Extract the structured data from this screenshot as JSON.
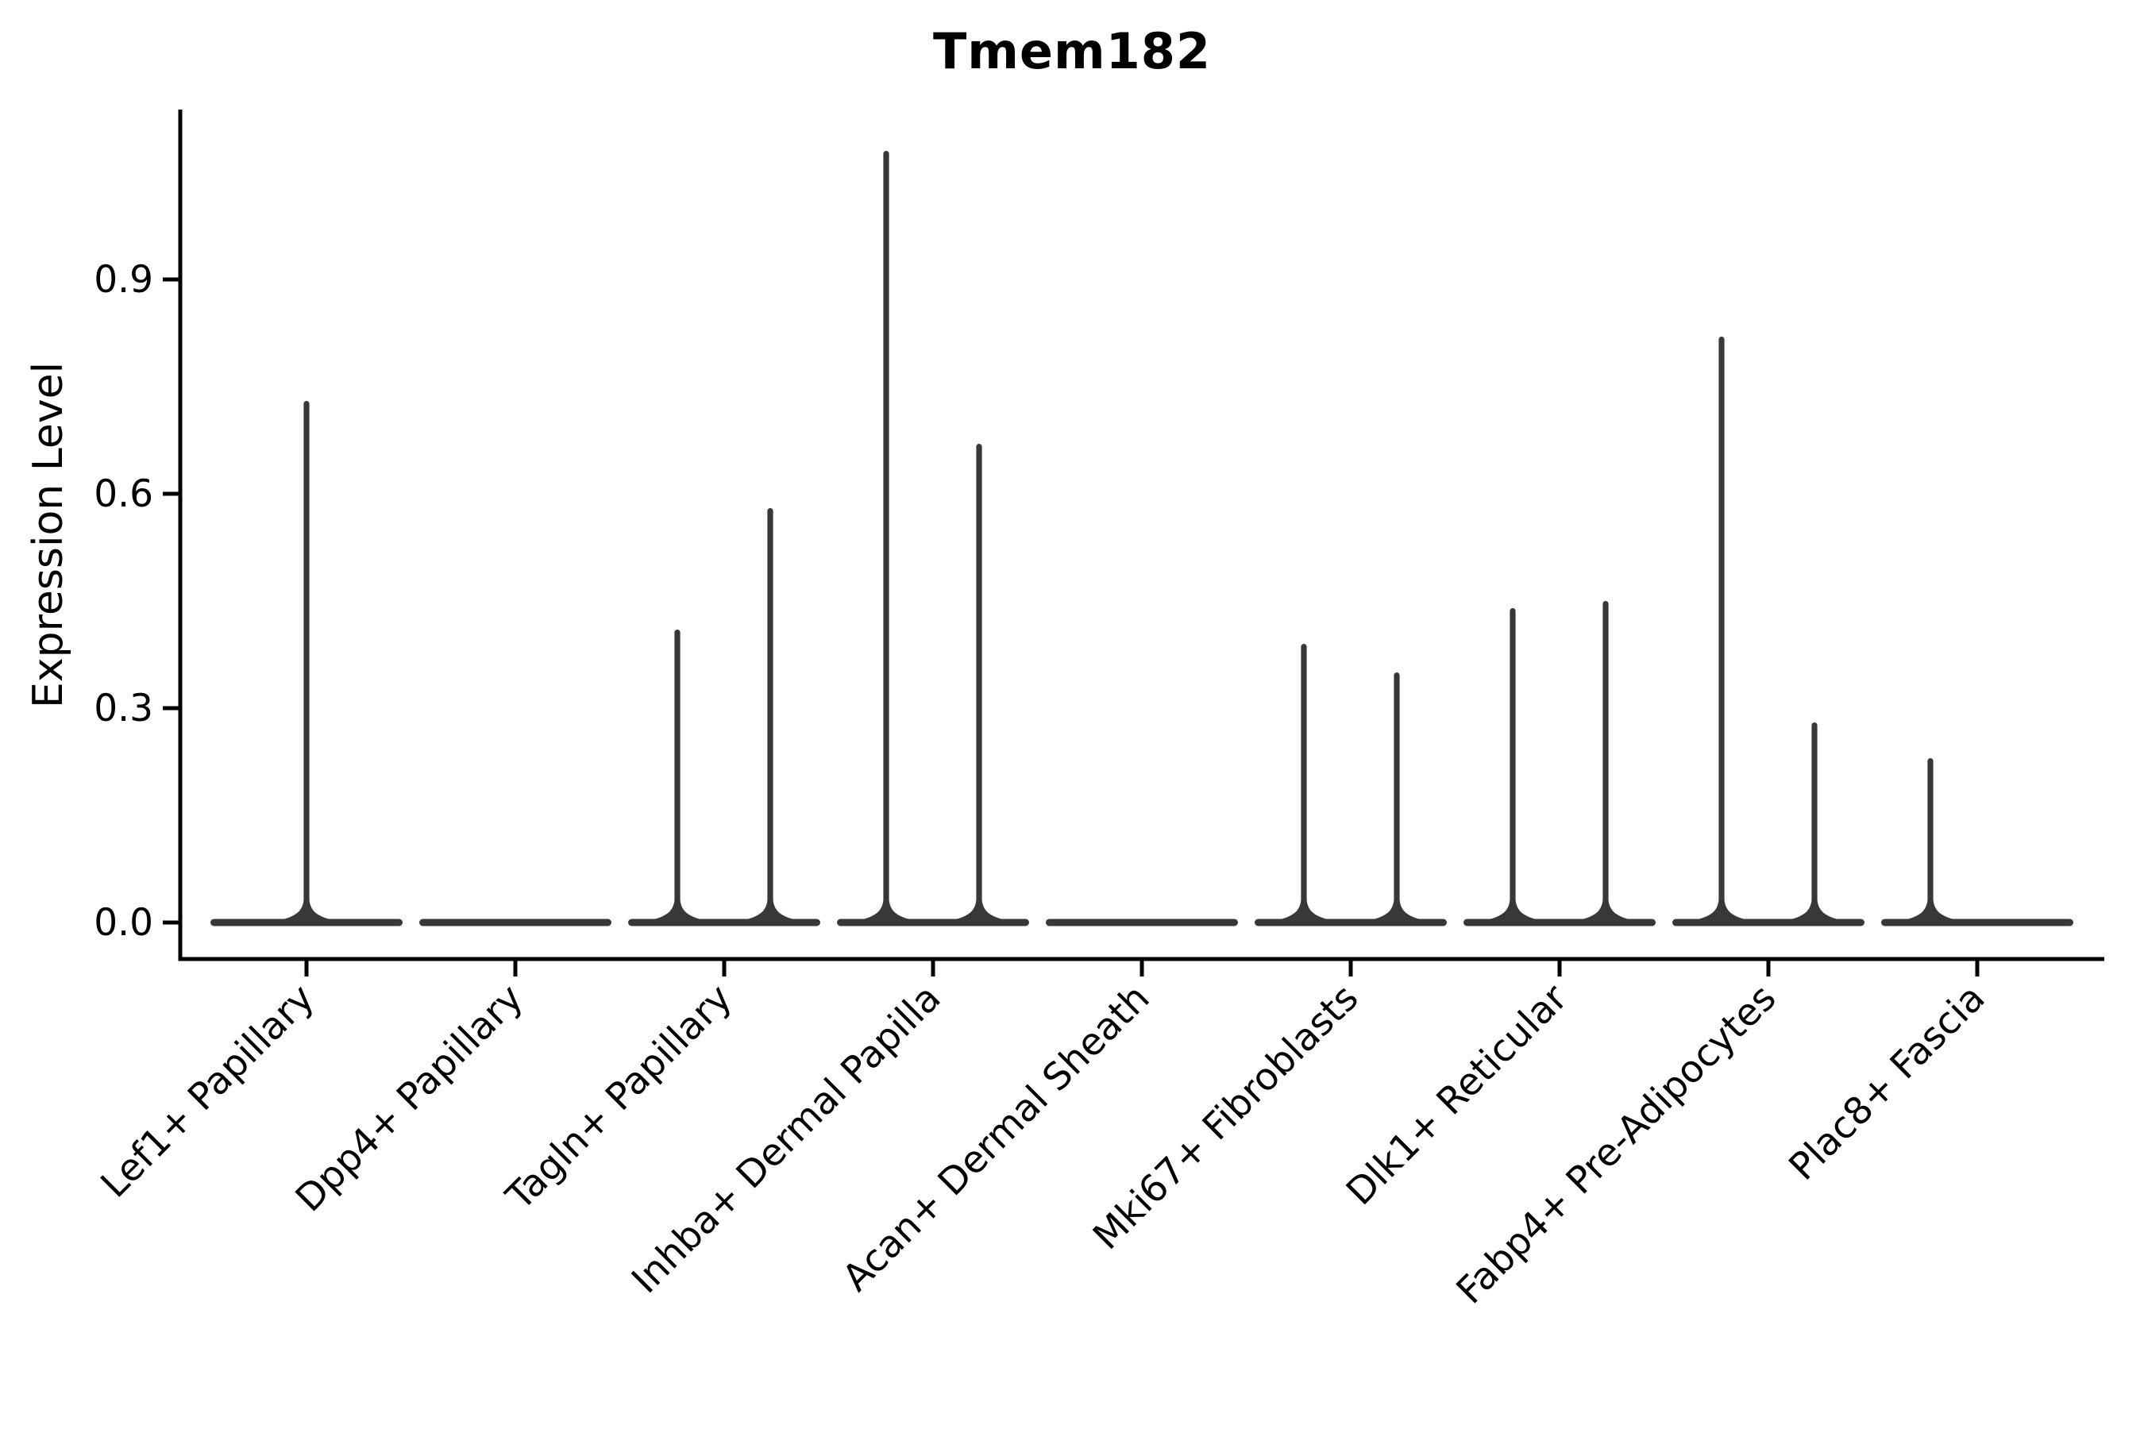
{
  "figure": {
    "title": "Tmem182"
  },
  "chart_data": {
    "type": "violin",
    "title": "Tmem182",
    "subtitle": "",
    "xlabel": "",
    "ylabel": "Expression Level",
    "legend": "none",
    "grid": false,
    "background": "#ffffff",
    "ylim": [
      0,
      1.135
    ],
    "ytick_labels": [
      "0.0",
      "0.3",
      "0.6",
      "0.9"
    ],
    "ytick_values": [
      0.0,
      0.3,
      0.6,
      0.9
    ],
    "categories": [
      "Lef1+ Papillary",
      "Dpp4+ Papillary",
      "Tagln+ Papillary",
      "Inhba+ Dermal Papilla",
      "Acan+ Dermal Sheath",
      "Mki67+ Fibroblasts",
      "Dlk1+ Reticular",
      "Fabp4+ Pre-Adipocytes",
      "Plac8+ Fascia"
    ],
    "violins": [
      {
        "category": "Lef1+ Papillary",
        "baseline_value": 0.0,
        "spikes": [
          {
            "position": "center",
            "max_value": 0.73
          }
        ]
      },
      {
        "category": "Dpp4+ Papillary",
        "baseline_value": 0.0,
        "spikes": []
      },
      {
        "category": "Tagln+ Papillary",
        "baseline_value": 0.0,
        "spikes": [
          {
            "position": "left",
            "max_value": 0.41
          },
          {
            "position": "right",
            "max_value": 0.58
          }
        ]
      },
      {
        "category": "Inhba+ Dermal Papilla",
        "baseline_value": 0.0,
        "spikes": [
          {
            "position": "left",
            "max_value": 1.08
          },
          {
            "position": "right",
            "max_value": 0.67
          }
        ]
      },
      {
        "category": "Acan+ Dermal Sheath",
        "baseline_value": 0.0,
        "spikes": []
      },
      {
        "category": "Mki67+ Fibroblasts",
        "baseline_value": 0.0,
        "spikes": [
          {
            "position": "left",
            "max_value": 0.39
          },
          {
            "position": "right",
            "max_value": 0.35
          }
        ]
      },
      {
        "category": "Dlk1+ Reticular",
        "baseline_value": 0.0,
        "spikes": [
          {
            "position": "left",
            "max_value": 0.44
          },
          {
            "position": "right",
            "max_value": 0.45
          }
        ]
      },
      {
        "category": "Fabp4+ Pre-Adipocytes",
        "baseline_value": 0.0,
        "spikes": [
          {
            "position": "left",
            "max_value": 0.82
          },
          {
            "position": "right",
            "max_value": 0.28
          }
        ]
      },
      {
        "category": "Plac8+ Fascia",
        "baseline_value": 0.0,
        "spikes": [
          {
            "position": "left",
            "max_value": 0.23
          }
        ]
      }
    ],
    "colors": {
      "violin": "#383838",
      "axis": "#000000",
      "text": "#000000",
      "background": "#ffffff"
    }
  }
}
